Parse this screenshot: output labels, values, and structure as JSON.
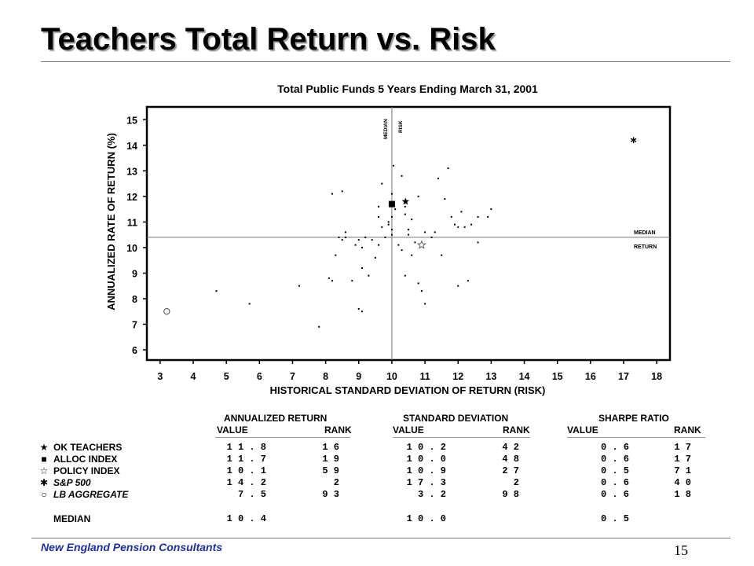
{
  "slide": {
    "title": "Teachers Total Return vs. Risk",
    "org": "New England Pension Consultants",
    "page_number": "15"
  },
  "chart_data": {
    "type": "scatter",
    "title": "Total Public Funds 5 Years Ending March 31, 2001",
    "xlabel": "HISTORICAL STANDARD DEVIATION OF RETURN (RISK)",
    "ylabel": "ANNUALIZED RATE OF RETURN (%)",
    "xlim": [
      2.6,
      18.4
    ],
    "ylim": [
      5.6,
      15.5
    ],
    "xticks": [
      "3",
      "4",
      "5",
      "6",
      "7",
      "8",
      "9",
      "10",
      "11",
      "12",
      "13",
      "14",
      "15",
      "16",
      "17",
      "18"
    ],
    "yticks": [
      "6",
      "7",
      "8",
      "9",
      "10",
      "11",
      "12",
      "13",
      "14",
      "15"
    ],
    "grid": false,
    "median_risk": 10.0,
    "median_return": 10.4,
    "median_risk_label": [
      "MEDIAN",
      "RISK"
    ],
    "median_return_label": [
      "MEDIAN",
      "RETURN"
    ],
    "universe": [
      [
        4.7,
        8.3
      ],
      [
        5.7,
        7.8
      ],
      [
        7.2,
        8.5
      ],
      [
        7.8,
        6.9
      ],
      [
        8.1,
        8.8
      ],
      [
        8.2,
        8.7
      ],
      [
        8.3,
        9.7
      ],
      [
        8.2,
        12.1
      ],
      [
        8.5,
        12.2
      ],
      [
        8.4,
        10.4
      ],
      [
        8.5,
        10.3
      ],
      [
        8.6,
        10.6
      ],
      [
        8.6,
        10.4
      ],
      [
        8.9,
        10.1
      ],
      [
        8.8,
        8.7
      ],
      [
        9.0,
        10.3
      ],
      [
        9.1,
        10.0
      ],
      [
        9.2,
        10.4
      ],
      [
        9.1,
        9.2
      ],
      [
        9.3,
        8.9
      ],
      [
        9.0,
        7.6
      ],
      [
        9.1,
        7.5
      ],
      [
        9.4,
        10.3
      ],
      [
        9.5,
        9.6
      ],
      [
        9.6,
        10.1
      ],
      [
        9.7,
        10.8
      ],
      [
        9.8,
        10.4
      ],
      [
        9.6,
        11.2
      ],
      [
        9.6,
        11.6
      ],
      [
        9.7,
        12.5
      ],
      [
        9.9,
        11.0
      ],
      [
        9.9,
        10.9
      ],
      [
        10.0,
        10.7
      ],
      [
        10.0,
        10.5
      ],
      [
        10.0,
        11.2
      ],
      [
        10.0,
        12.1
      ],
      [
        10.05,
        13.2
      ],
      [
        10.1,
        11.5
      ],
      [
        10.2,
        10.1
      ],
      [
        10.3,
        9.9
      ],
      [
        10.3,
        12.8
      ],
      [
        10.4,
        11.6
      ],
      [
        10.4,
        11.3
      ],
      [
        10.5,
        10.7
      ],
      [
        10.5,
        10.5
      ],
      [
        10.6,
        11.1
      ],
      [
        10.6,
        9.7
      ],
      [
        10.4,
        8.9
      ],
      [
        10.7,
        10.2
      ],
      [
        10.8,
        8.6
      ],
      [
        10.8,
        12.0
      ],
      [
        10.9,
        8.3
      ],
      [
        11.0,
        10.6
      ],
      [
        11.0,
        7.8
      ],
      [
        11.2,
        10.4
      ],
      [
        11.3,
        10.6
      ],
      [
        11.5,
        9.7
      ],
      [
        11.6,
        11.9
      ],
      [
        11.7,
        13.1
      ],
      [
        11.4,
        12.7
      ],
      [
        11.8,
        11.2
      ],
      [
        12.0,
        10.8
      ],
      [
        12.0,
        8.5
      ],
      [
        12.1,
        11.4
      ],
      [
        12.2,
        10.8
      ],
      [
        12.3,
        8.7
      ],
      [
        12.4,
        10.9
      ],
      [
        12.6,
        10.2
      ],
      [
        12.6,
        11.2
      ],
      [
        12.9,
        11.2
      ],
      [
        13.0,
        11.5
      ],
      [
        11.9,
        10.9
      ]
    ],
    "highlighted": [
      {
        "label": "OK TEACHERS",
        "x": 10.2,
        "y": 11.8,
        "marker": "filled-star"
      },
      {
        "label": "ALLOC INDEX",
        "x": 10.0,
        "y": 11.7,
        "marker": "filled-square"
      },
      {
        "label": "POLICY INDEX",
        "x": 10.9,
        "y": 10.1,
        "marker": "open-star"
      },
      {
        "label": "S&P 500",
        "x": 17.3,
        "y": 14.2,
        "marker": "asterisk"
      },
      {
        "label": "LB AGGREGATE",
        "x": 3.2,
        "y": 7.5,
        "marker": "open-circle"
      }
    ]
  },
  "table": {
    "groups": [
      {
        "title": "ANNUALIZED  RETURN",
        "value_label": "VALUE",
        "rank_label": "RANK"
      },
      {
        "title": "STANDARD  DEVIATION",
        "value_label": "VALUE",
        "rank_label": "RANK"
      },
      {
        "title": "SHARPE RATIO",
        "value_label": "VALUE",
        "rank_label": "RANK"
      }
    ],
    "rows": [
      {
        "symbol": "★",
        "label": "OK TEACHERS",
        "italic": false,
        "cells": [
          "11.8",
          "16",
          "10.2",
          "42",
          "0.6",
          "17"
        ]
      },
      {
        "symbol": "■",
        "label": "ALLOC INDEX",
        "italic": false,
        "cells": [
          "11.7",
          "19",
          "10.0",
          "48",
          "0.6",
          "17"
        ]
      },
      {
        "symbol": "☆",
        "label": "POLICY INDEX",
        "italic": false,
        "cells": [
          "10.1",
          "59",
          "10.9",
          "27",
          "0.5",
          "71"
        ]
      },
      {
        "symbol": "✱",
        "label": "S&P 500",
        "italic": true,
        "cells": [
          "14.2",
          "2",
          "17.3",
          "2",
          "0.6",
          "40"
        ]
      },
      {
        "symbol": "○",
        "label": "LB AGGREGATE",
        "italic": true,
        "cells": [
          "7.5",
          "93",
          "3.2",
          "98",
          "0.6",
          "18"
        ]
      }
    ],
    "median": {
      "label": "MEDIAN",
      "cells": [
        "10.4",
        "",
        "10.0",
        "",
        "0.5",
        ""
      ]
    }
  }
}
